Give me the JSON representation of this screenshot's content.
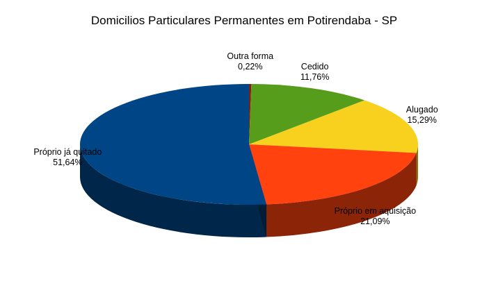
{
  "chart_data": {
    "type": "pie",
    "title": "Domicilios Particulares Permanentes em Potirendaba - SP",
    "style": "3d",
    "slices": [
      {
        "label": "Outra forma",
        "value_text": "0,22%",
        "value": 0.22,
        "color": "#8b1a10"
      },
      {
        "label": "Cedido",
        "value_text": "11,76%",
        "value": 11.76,
        "color": "#579d1c"
      },
      {
        "label": "Alugado",
        "value_text": "15,29%",
        "value": 15.29,
        "color": "#f8d01e"
      },
      {
        "label": "Próprio em aquisição",
        "value_text": "21,09%",
        "value": 21.09,
        "color": "#ff420e"
      },
      {
        "label": "Próprio já quitado",
        "value_text": "51,64%",
        "value": 51.64,
        "color": "#004586"
      }
    ]
  }
}
